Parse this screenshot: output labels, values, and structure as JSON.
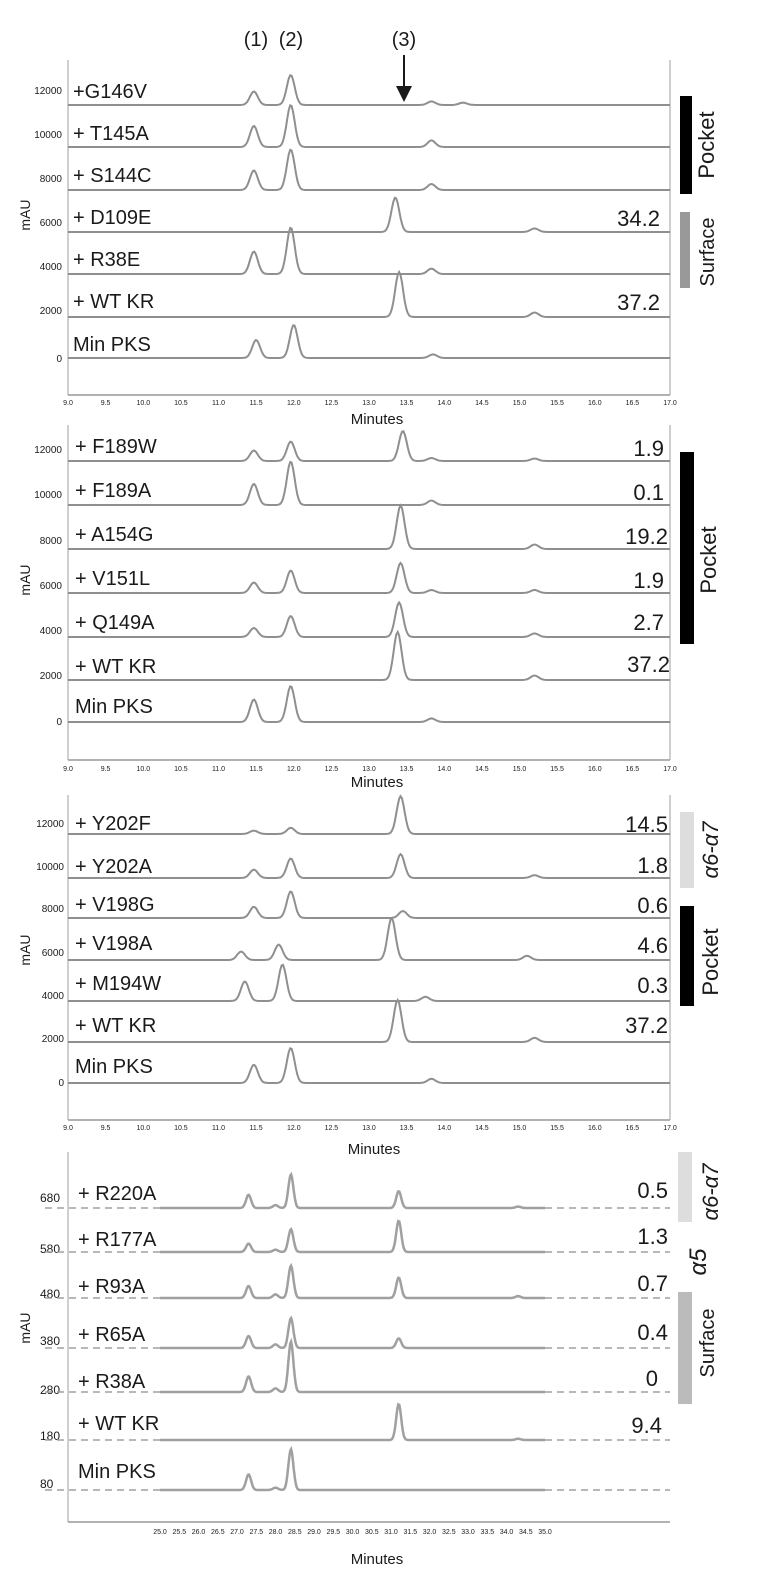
{
  "peak_labels": [
    "(1)",
    "(2)",
    "(3)"
  ],
  "chart_data": [
    {
      "type": "line",
      "xlabel": "Minutes",
      "ylabel": "mAU",
      "xlim": [
        9.0,
        17.0
      ],
      "x_ticks": [
        "9.0",
        "9.5",
        "10.0",
        "10.5",
        "11.0",
        "11.5",
        "12.0",
        "12.5",
        "13.0",
        "13.5",
        "14.0",
        "14.5",
        "15.0",
        "15.5",
        "16.0",
        "16.5",
        "17.0"
      ],
      "y_ticks": [
        "12000",
        "10000",
        "8000",
        "6000",
        "4000",
        "2000",
        "0"
      ],
      "series": [
        {
          "name": "+G146V",
          "value": "",
          "peaks": [
            [
              11.47,
              0.45
            ],
            [
              11.96,
              1.0
            ],
            [
              13.83,
              0.12
            ],
            [
              14.25,
              0.08
            ]
          ]
        },
        {
          "name": "+ T145A",
          "value": "",
          "peaks": [
            [
              11.47,
              0.7
            ],
            [
              11.96,
              1.4
            ],
            [
              13.83,
              0.22
            ]
          ]
        },
        {
          "name": "+ S144C",
          "value": "",
          "peaks": [
            [
              11.47,
              0.65
            ],
            [
              11.96,
              1.35
            ],
            [
              13.83,
              0.2
            ]
          ]
        },
        {
          "name": "+ D109E",
          "value": "34.2",
          "peaks": [
            [
              13.35,
              1.15
            ],
            [
              15.2,
              0.12
            ]
          ]
        },
        {
          "name": "+ R38E",
          "value": "",
          "peaks": [
            [
              11.47,
              0.75
            ],
            [
              11.96,
              1.55
            ],
            [
              13.83,
              0.18
            ]
          ]
        },
        {
          "name": "+ WT KR",
          "value": "37.2",
          "peaks": [
            [
              13.4,
              1.5
            ],
            [
              15.2,
              0.15
            ]
          ]
        },
        {
          "name": "Min PKS",
          "value": "",
          "peaks": [
            [
              11.5,
              0.6
            ],
            [
              12.0,
              1.1
            ],
            [
              13.85,
              0.12
            ]
          ]
        }
      ],
      "brackets": [
        {
          "label": "Pocket",
          "color": "#000000"
        },
        {
          "label": "Surface",
          "color": "#999999"
        }
      ]
    },
    {
      "type": "line",
      "xlabel": "Minutes",
      "ylabel": "mAU",
      "xlim": [
        9.0,
        17.0
      ],
      "x_ticks": [
        "9.0",
        "9.5",
        "10.0",
        "10.5",
        "11.0",
        "11.5",
        "12.0",
        "12.5",
        "13.0",
        "13.5",
        "14.0",
        "14.5",
        "15.0",
        "15.5",
        "16.0",
        "16.5",
        "17.0"
      ],
      "y_ticks": [
        "12000",
        "10000",
        "8000",
        "6000",
        "4000",
        "2000",
        "0"
      ],
      "series": [
        {
          "name": "+ F189W",
          "value": "1.9",
          "peaks": [
            [
              11.47,
              0.35
            ],
            [
              11.96,
              0.65
            ],
            [
              13.45,
              1.0
            ],
            [
              13.83,
              0.1
            ],
            [
              15.2,
              0.08
            ]
          ]
        },
        {
          "name": "+ F189A",
          "value": "0.1",
          "peaks": [
            [
              11.47,
              0.7
            ],
            [
              11.96,
              1.45
            ],
            [
              13.83,
              0.15
            ]
          ]
        },
        {
          "name": "+ A154G",
          "value": "19.2",
          "peaks": [
            [
              13.42,
              1.45
            ],
            [
              15.2,
              0.15
            ]
          ]
        },
        {
          "name": "+ V151L",
          "value": "1.9",
          "peaks": [
            [
              11.47,
              0.35
            ],
            [
              11.96,
              0.75
            ],
            [
              13.42,
              1.0
            ],
            [
              13.83,
              0.1
            ],
            [
              15.2,
              0.1
            ]
          ]
        },
        {
          "name": "+ Q149A",
          "value": "2.7",
          "peaks": [
            [
              11.47,
              0.3
            ],
            [
              11.96,
              0.7
            ],
            [
              13.4,
              1.15
            ],
            [
              15.2,
              0.12
            ]
          ]
        },
        {
          "name": "+ WT KR",
          "value": "37.2",
          "peaks": [
            [
              13.38,
              1.6
            ],
            [
              15.2,
              0.15
            ]
          ]
        },
        {
          "name": "Min PKS",
          "value": "",
          "peaks": [
            [
              11.47,
              0.75
            ],
            [
              11.96,
              1.2
            ],
            [
              13.83,
              0.12
            ]
          ]
        }
      ],
      "brackets": [
        {
          "label": "Pocket",
          "color": "#000000"
        }
      ]
    },
    {
      "type": "line",
      "xlabel": "Minutes",
      "ylabel": "mAU",
      "xlim": [
        9.0,
        17.0
      ],
      "x_ticks": [
        "9.0",
        "9.5",
        "10.0",
        "10.5",
        "11.0",
        "11.5",
        "12.0",
        "12.5",
        "13.0",
        "13.5",
        "14.0",
        "14.5",
        "15.0",
        "15.5",
        "16.0",
        "16.5",
        "17.0"
      ],
      "y_ticks": [
        "12000",
        "10000",
        "8000",
        "6000",
        "4000",
        "2000",
        "0"
      ],
      "series": [
        {
          "name": "+ Y202F",
          "value": "14.5",
          "peaks": [
            [
              11.47,
              0.12
            ],
            [
              11.96,
              0.22
            ],
            [
              13.42,
              1.35
            ]
          ]
        },
        {
          "name": "+ Y202A",
          "value": "1.8",
          "peaks": [
            [
              11.47,
              0.3
            ],
            [
              11.96,
              0.7
            ],
            [
              13.42,
              0.85
            ],
            [
              15.2,
              0.1
            ]
          ]
        },
        {
          "name": "+ V198G",
          "value": "0.6",
          "peaks": [
            [
              11.47,
              0.4
            ],
            [
              11.96,
              0.95
            ],
            [
              13.45,
              0.25
            ]
          ]
        },
        {
          "name": "+ V198A",
          "value": "4.6",
          "peaks": [
            [
              11.3,
              0.3
            ],
            [
              11.8,
              0.55
            ],
            [
              13.3,
              1.5
            ],
            [
              15.1,
              0.15
            ]
          ]
        },
        {
          "name": "+ M194W",
          "value": "0.3",
          "peaks": [
            [
              11.35,
              0.7
            ],
            [
              11.85,
              1.3
            ],
            [
              13.75,
              0.15
            ]
          ]
        },
        {
          "name": "+ WT KR",
          "value": "37.2",
          "peaks": [
            [
              13.38,
              1.5
            ],
            [
              15.2,
              0.15
            ]
          ]
        },
        {
          "name": "Min PKS",
          "value": "",
          "peaks": [
            [
              11.47,
              0.65
            ],
            [
              11.96,
              1.25
            ],
            [
              13.83,
              0.15
            ]
          ]
        }
      ],
      "brackets": [
        {
          "label": "α6-α7",
          "color": "#dddddd"
        },
        {
          "label": "Pocket",
          "color": "#000000"
        }
      ]
    },
    {
      "type": "line",
      "xlabel": "Minutes",
      "ylabel": "mAU",
      "xlim": [
        25.0,
        35.0
      ],
      "x_ticks": [
        "25.0",
        "25.5",
        "26.0",
        "26.5",
        "27.0",
        "27.5",
        "28.0",
        "28.5",
        "29.0",
        "29.5",
        "30.0",
        "30.5",
        "31.0",
        "31.5",
        "32.0",
        "32.5",
        "33.0",
        "33.5",
        "34.0",
        "34.5",
        "35.0"
      ],
      "y_ticks": [
        "680",
        "580",
        "480",
        "380",
        "280",
        "180",
        "80"
      ],
      "series": [
        {
          "name": "+ R220A",
          "value": "0.5",
          "peaks": [
            [
              27.3,
              0.55
            ],
            [
              28.4,
              1.4
            ],
            [
              28.0,
              0.12
            ],
            [
              31.2,
              0.7
            ],
            [
              34.3,
              0.06
            ]
          ]
        },
        {
          "name": "+ R177A",
          "value": "1.3",
          "peaks": [
            [
              27.3,
              0.35
            ],
            [
              28.4,
              0.95
            ],
            [
              28.0,
              0.1
            ],
            [
              31.2,
              1.3
            ]
          ]
        },
        {
          "name": "+ R93A",
          "value": "0.7",
          "peaks": [
            [
              27.3,
              0.5
            ],
            [
              28.4,
              1.35
            ],
            [
              28.0,
              0.15
            ],
            [
              31.2,
              0.85
            ],
            [
              34.3,
              0.08
            ]
          ]
        },
        {
          "name": "+ R65A",
          "value": "0.4",
          "peaks": [
            [
              27.3,
              0.5
            ],
            [
              28.4,
              1.25
            ],
            [
              28.0,
              0.15
            ],
            [
              31.2,
              0.4
            ]
          ]
        },
        {
          "name": "+ R38A",
          "value": "0",
          "peaks": [
            [
              27.3,
              0.65
            ],
            [
              28.4,
              2.1
            ],
            [
              28.0,
              0.15
            ]
          ]
        },
        {
          "name": "+ WT KR",
          "value": "9.4",
          "peaks": [
            [
              31.2,
              1.5
            ],
            [
              34.3,
              0.05
            ]
          ]
        },
        {
          "name": "Min PKS",
          "value": "",
          "peaks": [
            [
              27.3,
              0.65
            ],
            [
              28.4,
              1.7
            ],
            [
              28.0,
              0.1
            ]
          ]
        }
      ],
      "brackets": [
        {
          "label": "α6-α7",
          "color": "#dddddd"
        },
        {
          "label": "α5",
          "color": "#ffffff"
        },
        {
          "label": "Surface",
          "color": "#bbbbbb"
        }
      ]
    }
  ]
}
